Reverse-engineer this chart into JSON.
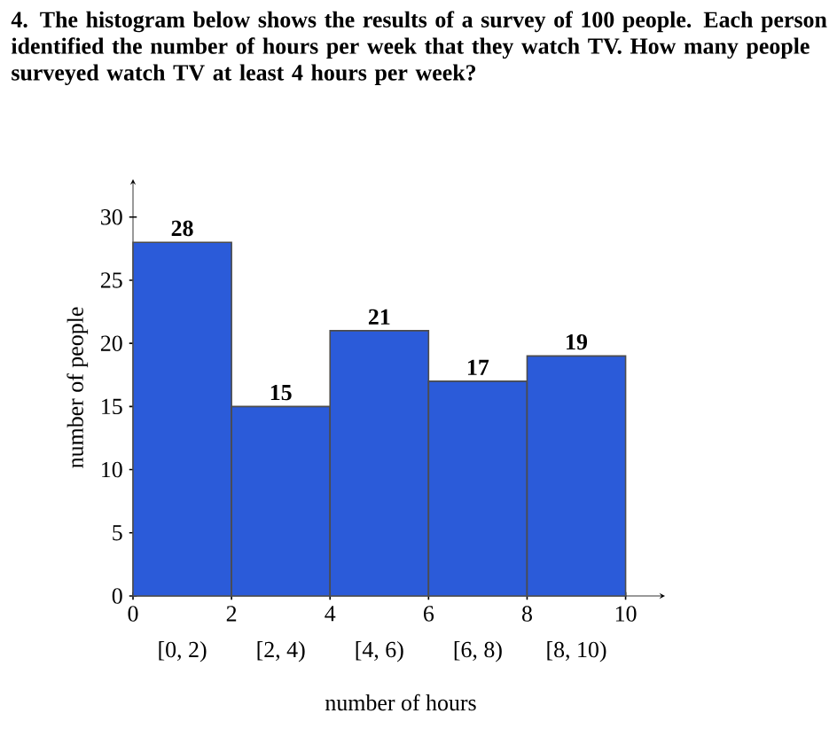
{
  "chart_data": {
    "type": "histogram",
    "title": "4. The histogram below shows the results of a survey of 100 people. Each person identified the number of hours per week that they watch TV. How many people surveyed watch TV at least 4 hours per week?",
    "xlabel": "number of hours",
    "ylabel": "number of people",
    "bins": [
      0,
      2,
      4,
      6,
      8,
      10
    ],
    "values": [
      28,
      15,
      21,
      17,
      19
    ],
    "color": "#2b5bd9",
    "xlim": [
      0,
      10.8
    ],
    "ylim": [
      0,
      33
    ],
    "xticks": [
      0,
      2,
      4,
      6,
      8,
      10
    ],
    "yticks": [
      0,
      5,
      10,
      15,
      20,
      25,
      30
    ],
    "data_labels": true,
    "annotations": [
      "[0, 2)",
      "[2, 4)",
      "[4, 6)",
      "[6, 8)",
      "[8, 10)"
    ]
  }
}
